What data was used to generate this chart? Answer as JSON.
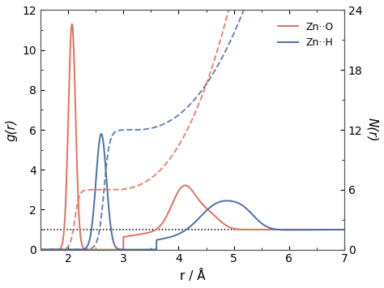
{
  "xlabel": "r / Å",
  "ylabel_left": "g(r)",
  "ylabel_right": "N(r)",
  "xlim": [
    1.5,
    7.0
  ],
  "ylim_left": [
    0,
    12
  ],
  "ylim_right": [
    0,
    24
  ],
  "yticks_left": [
    0,
    2,
    4,
    6,
    8,
    10,
    12
  ],
  "yticks_right": [
    0,
    6,
    12,
    18,
    24
  ],
  "color_ZnO": "#e07060",
  "color_ZnH": "#4a6fa5",
  "figsize": [
    4.74,
    3.55
  ],
  "dpi": 100
}
